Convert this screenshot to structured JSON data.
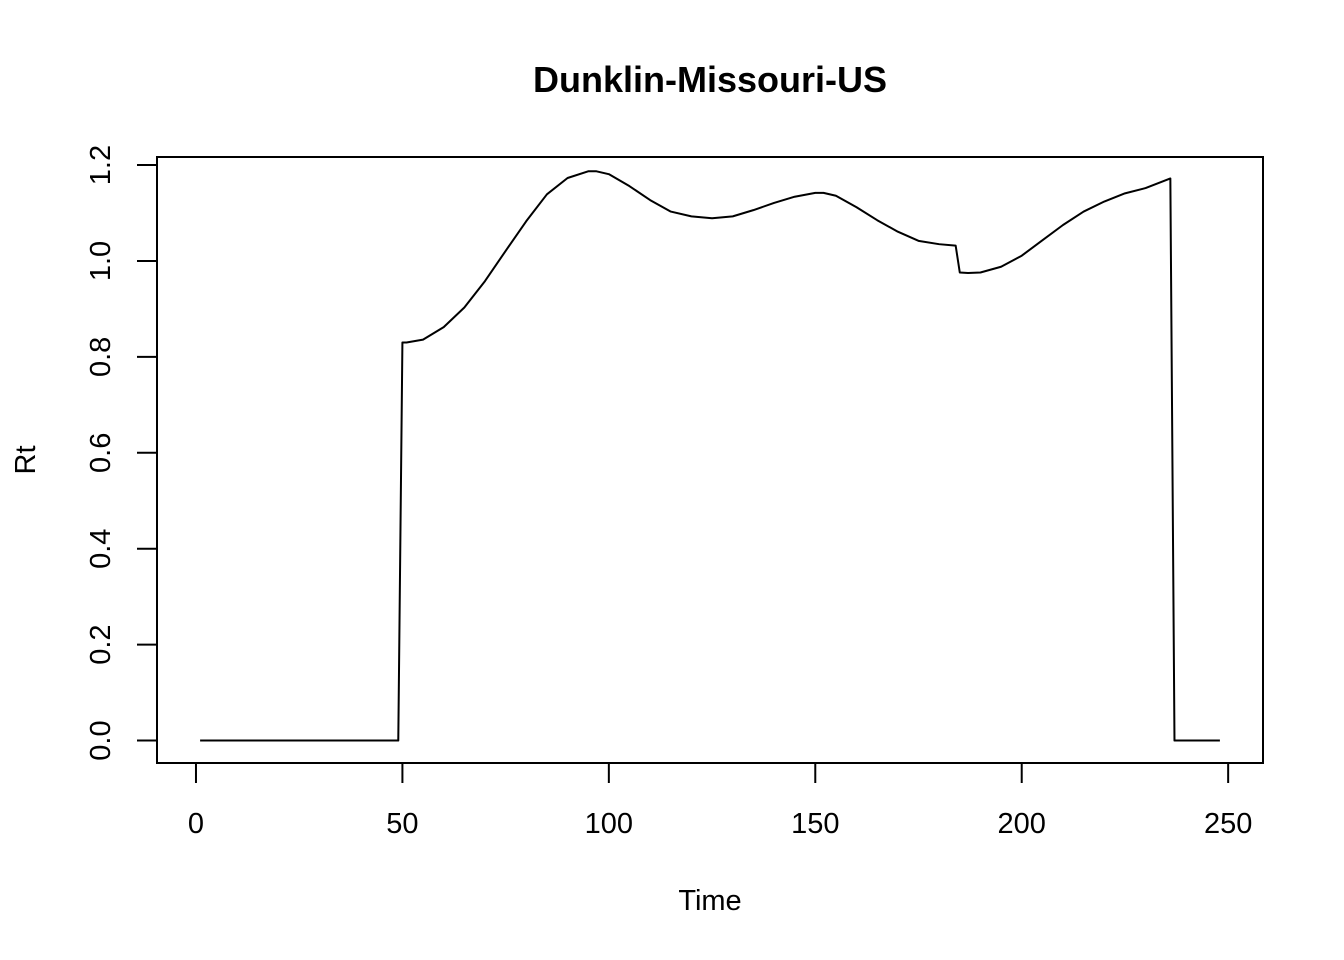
{
  "chart_data": {
    "type": "line",
    "title": "Dunklin-Missouri-US",
    "xlabel": "Time",
    "ylabel": "Rt",
    "xlim": [
      -9.44,
      258.44
    ],
    "ylim": [
      -0.0468,
      1.2168
    ],
    "xticks": [
      0,
      50,
      100,
      150,
      200,
      250
    ],
    "yticks": [
      0.0,
      0.2,
      0.4,
      0.6,
      0.8,
      1.0,
      1.2
    ],
    "xtick_labels": [
      "0",
      "50",
      "100",
      "150",
      "200",
      "250"
    ],
    "ytick_labels": [
      "0.0",
      "0.2",
      "0.4",
      "0.6",
      "0.8",
      "1.0",
      "1.2"
    ],
    "grid": false,
    "legend": "none",
    "line_color": "#000000",
    "series": [
      {
        "x": [
          1,
          49,
          50,
          51,
          55,
          60,
          65,
          70,
          75,
          80,
          85,
          90,
          95,
          97,
          100,
          105,
          110,
          115,
          120,
          125,
          130,
          135,
          140,
          145,
          150,
          152,
          155,
          160,
          165,
          170,
          175,
          180,
          184,
          185,
          187,
          190,
          195,
          200,
          205,
          210,
          215,
          220,
          225,
          230,
          236,
          237,
          248
        ],
        "y": [
          0,
          0,
          0.83,
          0.83,
          0.836,
          0.862,
          0.903,
          0.958,
          1.021,
          1.083,
          1.139,
          1.173,
          1.187,
          1.187,
          1.181,
          1.156,
          1.127,
          1.103,
          1.093,
          1.089,
          1.093,
          1.106,
          1.121,
          1.134,
          1.142,
          1.142,
          1.136,
          1.112,
          1.085,
          1.061,
          1.042,
          1.035,
          1.032,
          0.976,
          0.975,
          0.976,
          0.988,
          1.011,
          1.043,
          1.075,
          1.103,
          1.124,
          1.141,
          1.152,
          1.172,
          0,
          0
        ]
      }
    ]
  }
}
